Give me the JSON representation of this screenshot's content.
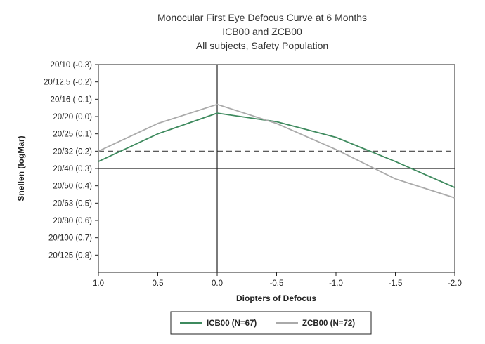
{
  "chart_data": {
    "type": "line",
    "title": [
      "Monocular First Eye Defocus Curve at 6 Months",
      "ICB00 and ZCB00",
      "All subjects, Safety Population"
    ],
    "xlabel": "Diopters of Defocus",
    "ylabel": "Snellen (logMar)",
    "x": [
      1.0,
      0.5,
      0.0,
      -0.5,
      -1.0,
      -1.5,
      -2.0
    ],
    "x_ticks": [
      {
        "value": 1.0,
        "label": "1.0"
      },
      {
        "value": 0.5,
        "label": "0.5"
      },
      {
        "value": 0.0,
        "label": "0.0"
      },
      {
        "value": -0.5,
        "label": "-0.5"
      },
      {
        "value": -1.0,
        "label": "-1.0"
      },
      {
        "value": -1.5,
        "label": "-1.5"
      },
      {
        "value": -2.0,
        "label": "-2.0"
      }
    ],
    "xlim": [
      1.0,
      -2.0
    ],
    "ylim": [
      0.9,
      -0.3
    ],
    "y_ticks": [
      {
        "value": -0.3,
        "label": "20/10 (-0.3)"
      },
      {
        "value": -0.2,
        "label": "20/12.5 (-0.2)"
      },
      {
        "value": -0.1,
        "label": "20/16 (-0.1)"
      },
      {
        "value": 0.0,
        "label": "20/20 (0.0)"
      },
      {
        "value": 0.1,
        "label": "20/25 (0.1)"
      },
      {
        "value": 0.2,
        "label": "20/32 (0.2)"
      },
      {
        "value": 0.3,
        "label": "20/40 (0.3)"
      },
      {
        "value": 0.4,
        "label": "20/50 (0.4)"
      },
      {
        "value": 0.5,
        "label": "20/63 (0.5)"
      },
      {
        "value": 0.6,
        "label": "20/80 (0.6)"
      },
      {
        "value": 0.7,
        "label": "20/100 (0.7)"
      },
      {
        "value": 0.8,
        "label": "20/125 (0.8)"
      }
    ],
    "series": [
      {
        "name": "ICB00 (N=67)",
        "color": "#3e8a5e",
        "values": [
          0.26,
          0.1,
          -0.02,
          0.03,
          0.12,
          0.26,
          0.41
        ]
      },
      {
        "name": "ZCB00 (N=72)",
        "color": "#aaaaaa",
        "values": [
          0.2,
          0.04,
          -0.07,
          0.04,
          0.19,
          0.36,
          0.47
        ]
      }
    ],
    "reference_lines": [
      {
        "axis": "y",
        "value": 0.2,
        "style": "dashed",
        "color": "#444444"
      },
      {
        "axis": "y",
        "value": 0.3,
        "style": "solid",
        "color": "#222222"
      },
      {
        "axis": "x",
        "value": 0.0,
        "style": "solid",
        "color": "#222222"
      }
    ],
    "legend": {
      "position": "bottom"
    }
  }
}
